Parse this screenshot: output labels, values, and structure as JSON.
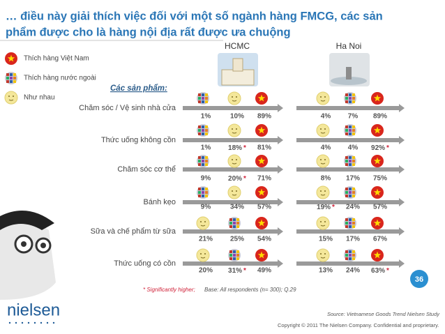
{
  "title_lines": [
    "… điều này giải thích việc đối với một số ngành hàng FMCG, các sản",
    "phẩm được cho là hàng nội địa rất được ưa chuộng"
  ],
  "legend": [
    "Thích hàng Việt Nam",
    "Thích hàng nước ngoài",
    "Như nhau"
  ],
  "products_label": "Các sản phẩm:",
  "cities": [
    "HCMC",
    "Ha Noi"
  ],
  "rows": [
    {
      "label": "Chăm sóc / Vệ sinh nhà cửa",
      "hcmc": [
        "1%",
        "10%",
        "89%"
      ],
      "hanoi": [
        "4%",
        "7%",
        "89%"
      ]
    },
    {
      "label": "Thức uống không cồn",
      "hcmc": [
        "1%",
        "18%*",
        "81%"
      ],
      "hanoi": [
        "4%",
        "4%",
        "92%*"
      ]
    },
    {
      "label": "Chăm sóc cơ thể",
      "hcmc": [
        "9%",
        "20%*",
        "71%"
      ],
      "hanoi": [
        "8%",
        "17%",
        "75%"
      ]
    },
    {
      "label": "Bánh kẹo",
      "hcmc": [
        "9%",
        "34%",
        "57%"
      ],
      "hanoi": [
        "19%*",
        "24%",
        "57%"
      ]
    },
    {
      "label": "Sữa và chế phẩm từ sữa",
      "hcmc": [
        "21%",
        "25%",
        "54%"
      ],
      "hanoi": [
        "15%",
        "17%",
        "67%"
      ]
    },
    {
      "label": "Thức uống có cồn",
      "hcmc": [
        "20%",
        "31%*",
        "49%"
      ],
      "hanoi": [
        "13%",
        "24%",
        "63%*"
      ]
    }
  ],
  "slide_number": "36",
  "footnote_star": "* Significantly higher;",
  "footnote": "Base: All respondents (n= 300); Q.29",
  "source": "Source: Vietnamese Goods Trend Nielsen Study",
  "copyright": "Copyright © 2011 The Nielsen Company. Confidential and proprietary.",
  "logo": "nielsen"
}
